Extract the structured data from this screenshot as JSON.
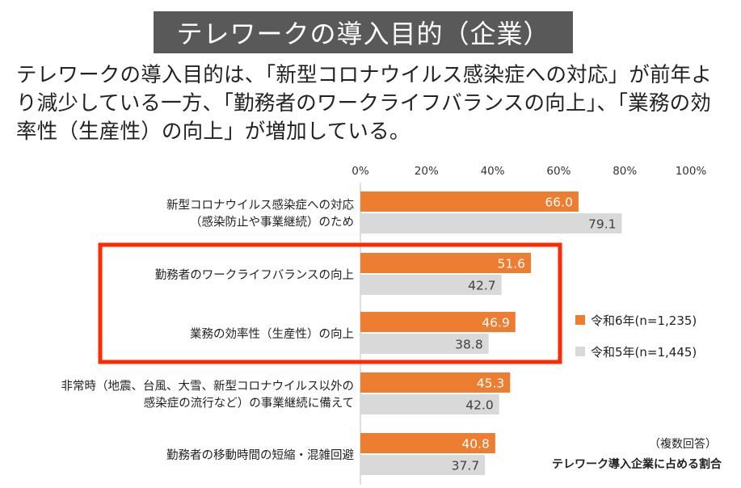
{
  "header": {
    "title": "テレワークの導入目的（企業）",
    "description": "テレワークの導入目的は、「新型コロナウイルス感染症への対応」が前年より減少している一方、「勤務者のワークライフバランスの向上」、「業務の効率性（生産性）の向上」が増加している。"
  },
  "chart_data": {
    "type": "bar",
    "orientation": "horizontal",
    "categories": [
      [
        "新型コロナウイルス感染症への対応",
        "（感染防止や事業継続）のため"
      ],
      [
        "勤務者のワークライフバランスの向上"
      ],
      [
        "業務の効率性（生産性）の向上"
      ],
      [
        "非常時（地震、台風、大雪、新型コロナウイルス以外の",
        "感染症の流行など）の事業継続に備えて"
      ],
      [
        "勤務者の移動時間の短縮・混雑回避"
      ]
    ],
    "series": [
      {
        "name": "令和6年(n=1,235)",
        "values": [
          66.0,
          51.6,
          46.9,
          45.3,
          40.8
        ],
        "color": "#ED7D31"
      },
      {
        "name": "令和5年(n=1,445)",
        "values": [
          79.1,
          42.7,
          38.8,
          42.0,
          37.7
        ],
        "color": "#D9D9D9"
      }
    ],
    "x_ticks": [
      "0%",
      "20%",
      "40%",
      "60%",
      "80%",
      "100%"
    ],
    "xlim": [
      0,
      100
    ],
    "x_axis_position": "top",
    "legend_position": "right",
    "highlight": {
      "categories": [
        1,
        2
      ],
      "color": "#FF2A00"
    },
    "grid": false
  },
  "notes": {
    "multiple_answers": "（複数回答）",
    "share_label": "テレワーク導入企業に占める割合"
  }
}
